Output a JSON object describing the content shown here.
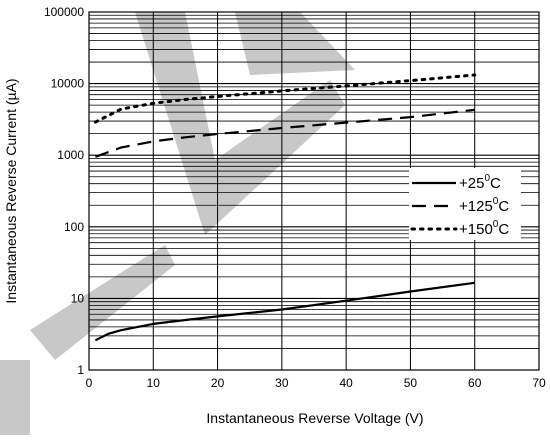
{
  "chart_data": {
    "type": "line",
    "title": "",
    "xlabel": "Instantaneous Reverse Voltage (V)",
    "ylabel": "Instantaneous Reverse Current (µA)",
    "xlim": [
      0,
      70
    ],
    "ylim": [
      1,
      100000
    ],
    "yscale": "log",
    "grid": true,
    "legend_position": "right",
    "x_ticks": [
      "0",
      "10",
      "20",
      "30",
      "40",
      "50",
      "60",
      "70"
    ],
    "y_ticks": [
      "1",
      "10",
      "100",
      "1000",
      "10000",
      "100000"
    ],
    "series": [
      {
        "name": "+25°C",
        "label_main": "+25",
        "label_sup": "0",
        "label_unit": "C",
        "style": "solid",
        "color": "#000000",
        "x": [
          1,
          3,
          5,
          10,
          15,
          20,
          30,
          40,
          50,
          60
        ],
        "y": [
          2.6,
          3.2,
          3.6,
          4.4,
          5.0,
          5.6,
          7.0,
          9.3,
          12.5,
          16.5
        ]
      },
      {
        "name": "+125°C",
        "label_main": "+125",
        "label_sup": "0",
        "label_unit": "C",
        "style": "dashed",
        "color": "#000000",
        "x": [
          1,
          5,
          10,
          15,
          20,
          30,
          40,
          50,
          60
        ],
        "y": [
          950,
          1280,
          1560,
          1780,
          1980,
          2400,
          2850,
          3400,
          4300
        ]
      },
      {
        "name": "+150°C",
        "label_main": "+150",
        "label_sup": "0",
        "label_unit": "C",
        "style": "dotted",
        "color": "#000000",
        "x": [
          1,
          5,
          10,
          15,
          20,
          30,
          40,
          50,
          60
        ],
        "y": [
          2900,
          4400,
          5300,
          6000,
          6600,
          7900,
          9300,
          11000,
          13200
        ]
      }
    ]
  },
  "colors": {
    "background": "#ffffff",
    "grid": "#000000",
    "line": "#000000",
    "watermark": "#000000"
  }
}
